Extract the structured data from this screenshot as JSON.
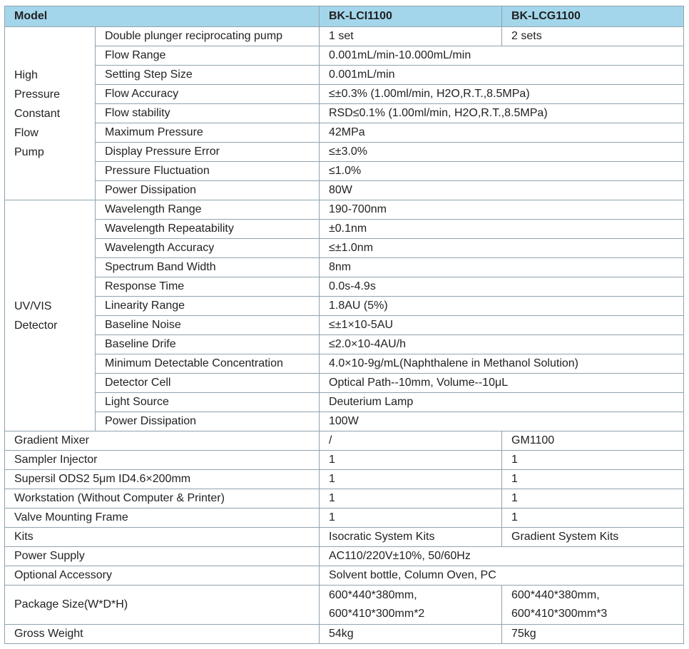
{
  "header": [
    "Model",
    "BK-LCI1100",
    "BK-LCG1100"
  ],
  "groups": [
    {
      "label": [
        "High",
        "Pressure",
        "Constant",
        "Flow",
        "Pump"
      ],
      "rows": [
        {
          "name": "Double plunger reciprocating pump",
          "values": [
            "1 set",
            "2 sets"
          ]
        },
        {
          "name": "Flow Range",
          "values": [
            "0.001mL/min-10.000mL/min"
          ]
        },
        {
          "name": "Setting Step Size",
          "values": [
            "0.001mL/min"
          ]
        },
        {
          "name": "Flow Accuracy",
          "values": [
            "≤±0.3% (1.00ml/min, H2O,R.T.,8.5MPa)"
          ]
        },
        {
          "name": "Flow stability",
          "values": [
            "RSD≤0.1% (1.00ml/min, H2O,R.T.,8.5MPa)"
          ]
        },
        {
          "name": "Maximum Pressure",
          "values": [
            "42MPa"
          ]
        },
        {
          "name": "Display Pressure Error",
          "values": [
            "≤±3.0%"
          ]
        },
        {
          "name": "Pressure Fluctuation",
          "values": [
            "≤1.0%"
          ]
        },
        {
          "name": "Power Dissipation",
          "values": [
            "80W"
          ]
        }
      ]
    },
    {
      "label": [
        "UV/VIS",
        "Detector"
      ],
      "rows": [
        {
          "name": "Wavelength Range",
          "values": [
            "190-700nm"
          ]
        },
        {
          "name": "Wavelength Repeatability",
          "values": [
            "±0.1nm"
          ]
        },
        {
          "name": "Wavelength Accuracy",
          "values": [
            "≤±1.0nm"
          ]
        },
        {
          "name": "Spectrum Band Width",
          "values": [
            "8nm"
          ]
        },
        {
          "name": "Response Time",
          "values": [
            "0.0s-4.9s"
          ]
        },
        {
          "name": "Linearity Range",
          "values": [
            "1.8AU (5%)"
          ]
        },
        {
          "name": "Baseline Noise",
          "values": [
            "≤±1×10-5AU"
          ]
        },
        {
          "name": "Baseline Drife",
          "values": [
            "≤2.0×10-4AU/h"
          ]
        },
        {
          "name": "Minimum Detectable Concentration",
          "values": [
            "4.0×10-9g/mL(Naphthalene in Methanol Solution)"
          ]
        },
        {
          "name": "Detector Cell",
          "values": [
            "Optical Path--10mm, Volume--10μL"
          ]
        },
        {
          "name": "Light Source",
          "values": [
            "Deuterium Lamp"
          ]
        },
        {
          "name": "Power Dissipation",
          "values": [
            "100W"
          ]
        }
      ]
    }
  ],
  "rows": [
    {
      "name": "Gradient Mixer",
      "values": [
        "/",
        "GM1100"
      ]
    },
    {
      "name": "Sampler Injector",
      "values": [
        "1",
        "1"
      ]
    },
    {
      "name": "Supersil ODS2 5μm ID4.6×200mm",
      "values": [
        "1",
        "1"
      ]
    },
    {
      "name": "Workstation (Without Computer & Printer)",
      "values": [
        "1",
        "1"
      ]
    },
    {
      "name": "Valve Mounting Frame",
      "values": [
        "1",
        "1"
      ]
    },
    {
      "name": "Kits",
      "values": [
        "Isocratic System Kits",
        "Gradient System Kits"
      ]
    },
    {
      "name": "Power Supply",
      "values": [
        "AC110/220V±10%, 50/60Hz"
      ]
    },
    {
      "name": "Optional Accessory",
      "values": [
        "Solvent bottle, Column Oven, PC"
      ]
    },
    {
      "name": "Package Size(W*D*H)",
      "values": [
        [
          "600*440*380mm,",
          "600*410*300mm*2"
        ],
        [
          "600*440*380mm,",
          "600*410*300mm*3"
        ]
      ]
    },
    {
      "name": "Gross Weight",
      "values": [
        "54kg",
        "75kg"
      ]
    }
  ]
}
